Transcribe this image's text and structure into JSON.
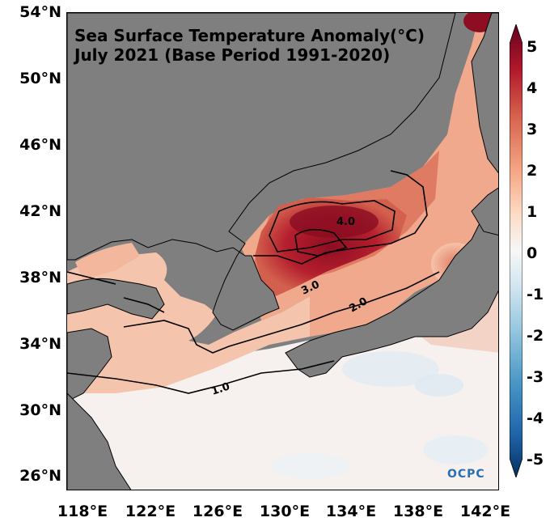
{
  "title_line1": "Sea Surface Temperature Anomaly(°C)",
  "title_line2": "July 2021 (Base Period 1991-2020)",
  "lat_labels": [
    "54°N",
    "50°N",
    "46°N",
    "42°N",
    "38°N",
    "34°N",
    "30°N",
    "26°N"
  ],
  "lon_labels": [
    "118°E",
    "122°E",
    "126°E",
    "130°E",
    "134°E",
    "138°E",
    "142°E"
  ],
  "colorbar": {
    "ticks": [
      "5",
      "4",
      "3",
      "2",
      "1",
      "0",
      "-1",
      "-2",
      "-3",
      "-4",
      "-5"
    ],
    "range": [
      -5,
      5
    ],
    "colors": [
      "#053061",
      "#2166ac",
      "#4393c3",
      "#92c5de",
      "#d1e5f0",
      "#f7f7f7",
      "#fddbc7",
      "#f4a582",
      "#d6604d",
      "#b2182b",
      "#67001f"
    ]
  },
  "contour_labels": [
    "4.0",
    "3.0",
    "2.0",
    "1.0"
  ],
  "logo": "OCPC",
  "colors": {
    "land": "#7f7f7f",
    "coast": "#000000"
  }
}
